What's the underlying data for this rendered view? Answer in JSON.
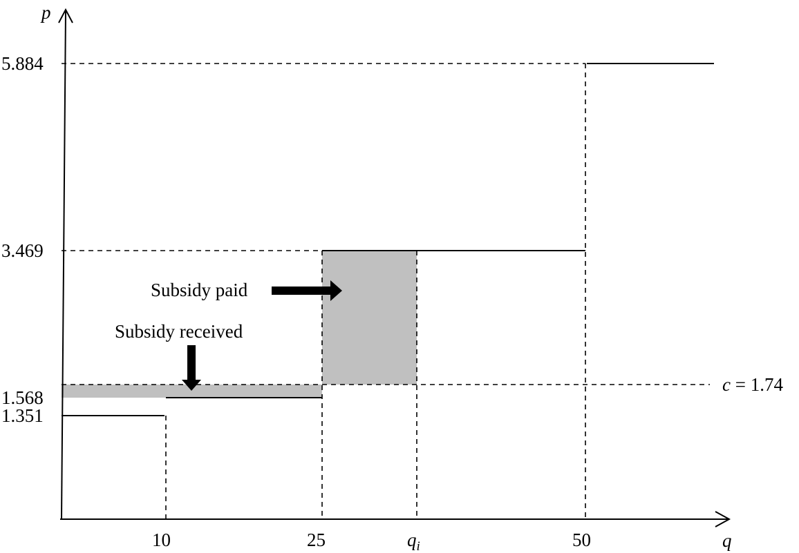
{
  "axes": {
    "x_label": "q",
    "y_label": "p"
  },
  "y_ticks": [
    "5.884",
    "3.469",
    "1.568",
    "1.351"
  ],
  "x_ticks": {
    "t10": "10",
    "t25": "25",
    "tqi_base": "q",
    "tqi_sub": "i",
    "t50": "50"
  },
  "cost_label": {
    "var": "c",
    "rest": " = 1.74"
  },
  "annotations": {
    "subsidy_paid": "Subsidy paid",
    "subsidy_received": "Subsidy received"
  },
  "colors": {
    "shade": "#c0c0c0",
    "ink": "#000000"
  },
  "diagram_data": {
    "marginal_cost": 1.74,
    "price_steps": [
      {
        "q_from": 0,
        "q_to": 10,
        "p": 1.351
      },
      {
        "q_from": 10,
        "q_to": 25,
        "p": 1.568
      },
      {
        "q_from": 25,
        "q_to": 50,
        "p": 3.469
      },
      {
        "q_from": 50,
        "q_to": null,
        "p": 5.884
      }
    ],
    "shaded_regions": [
      {
        "name": "subsidy-received",
        "q_from": 0,
        "q_to": 25,
        "p_low": 1.568,
        "p_high": 1.74
      },
      {
        "name": "subsidy-paid",
        "q_from": 25,
        "q_to": "q_i",
        "p_low": 1.74,
        "p_high": 3.469
      }
    ]
  }
}
